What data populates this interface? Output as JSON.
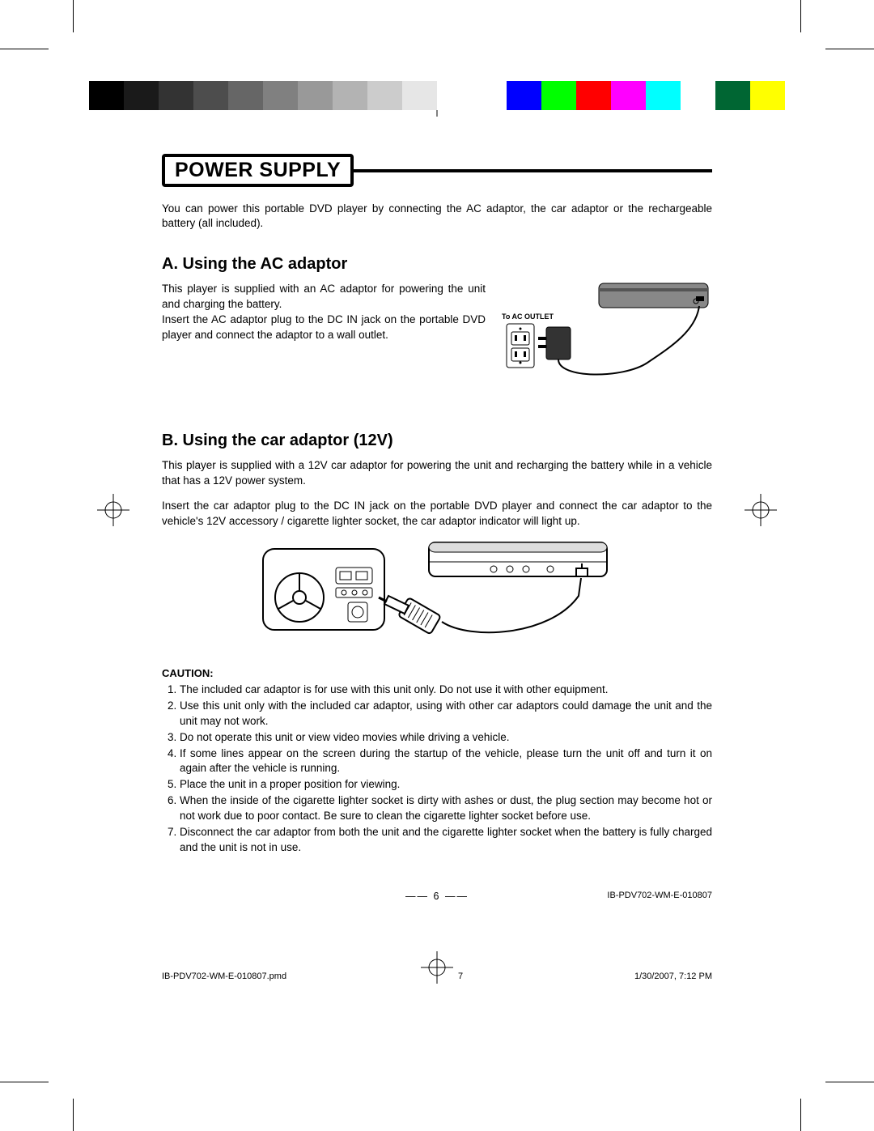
{
  "colorbar": {
    "colors": [
      "#000000",
      "#1a1a1a",
      "#333333",
      "#4d4d4d",
      "#666666",
      "#808080",
      "#999999",
      "#b3b3b3",
      "#cccccc",
      "#e6e6e6",
      "#ffffff",
      "#ffffff",
      "#0000ff",
      "#00ff00",
      "#ff0000",
      "#ff00ff",
      "#00ffff",
      "#ffffff",
      "#006633",
      "#ffff00"
    ]
  },
  "title": "POWER SUPPLY",
  "intro": "You can power this portable DVD player by connecting the AC adaptor, the car adaptor or the rechargeable battery (all included).",
  "sectionA": {
    "heading": "A. Using the AC adaptor",
    "p1": "This player is supplied with an AC adaptor for powering the unit and charging the battery.",
    "p2": "Insert the AC adaptor plug to the DC IN jack on the portable DVD player and connect the adaptor to a wall outlet.",
    "diagram_label": "To AC OUTLET"
  },
  "sectionB": {
    "heading": "B. Using the car adaptor (12V)",
    "p1": "This player is supplied with a 12V car adaptor for powering the unit and recharging the battery while in a vehicle that has a 12V power system.",
    "p2": "Insert the car adaptor plug to the DC IN jack on the portable DVD player and connect the car adaptor to the vehicle's 12V accessory / cigarette lighter socket, the car adaptor indicator will light up."
  },
  "caution": {
    "label": "CAUTION:",
    "items": [
      "The included car adaptor is for use with this unit only. Do not use it with other equipment.",
      "Use this unit only with the included car adaptor, using with other car adaptors could damage the unit and the unit may not work.",
      "Do not operate this unit or view video movies while driving a vehicle.",
      "If some lines appear on the screen during the startup of the vehicle, please turn the unit off and turn it on again after the vehicle is running.",
      "Place the unit in a proper position for viewing.",
      "When the inside of the cigarette lighter socket is dirty with ashes or dust, the plug section may become hot or not work due to poor contact. Be sure to clean the cigarette lighter socket before use.",
      "Disconnect the car adaptor from both the unit and the cigarette lighter socket when the battery is fully charged and the unit is not in use."
    ]
  },
  "footer": {
    "page_number": "6",
    "doc_id": "IB-PDV702-WM-E-010807"
  },
  "printfooter": {
    "filename": "IB-PDV702-WM-E-010807.pmd",
    "sheet": "7",
    "timestamp": "1/30/2007, 7:12 PM"
  }
}
